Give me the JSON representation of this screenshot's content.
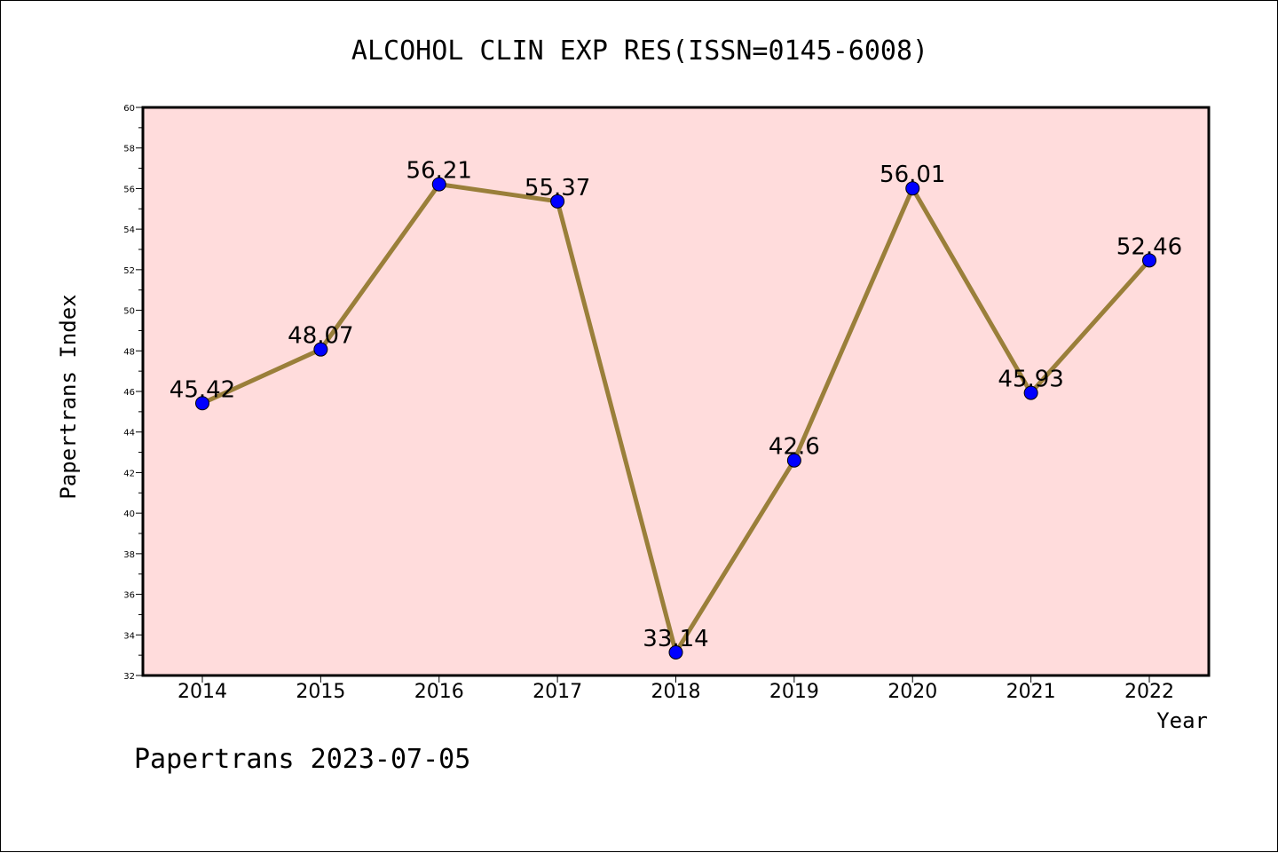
{
  "chart_data": {
    "type": "line",
    "title": "ALCOHOL CLIN EXP RES(ISSN=0145-6008)",
    "xlabel": "Year",
    "ylabel": "Papertrans Index",
    "categories": [
      "2014",
      "2015",
      "2016",
      "2017",
      "2018",
      "2019",
      "2020",
      "2021",
      "2022"
    ],
    "values": [
      45.42,
      48.07,
      56.21,
      55.37,
      33.14,
      42.6,
      56.01,
      45.93,
      52.46
    ],
    "data_labels": [
      "45.42",
      "48.07",
      "56.21",
      "55.37",
      "33.14",
      "42.6",
      "56.01",
      "45.93",
      "52.46"
    ],
    "ylim": [
      32,
      60
    ],
    "yticks": [
      "32",
      "34",
      "36",
      "38",
      "40",
      "42",
      "44",
      "46",
      "48",
      "50",
      "52",
      "54",
      "56",
      "58",
      "60"
    ],
    "grid": false,
    "colors": {
      "plot_background": "#ffdcdc",
      "line": "#9a7f3a",
      "marker": "#0000ff"
    }
  },
  "footer": "Papertrans 2023-07-05"
}
